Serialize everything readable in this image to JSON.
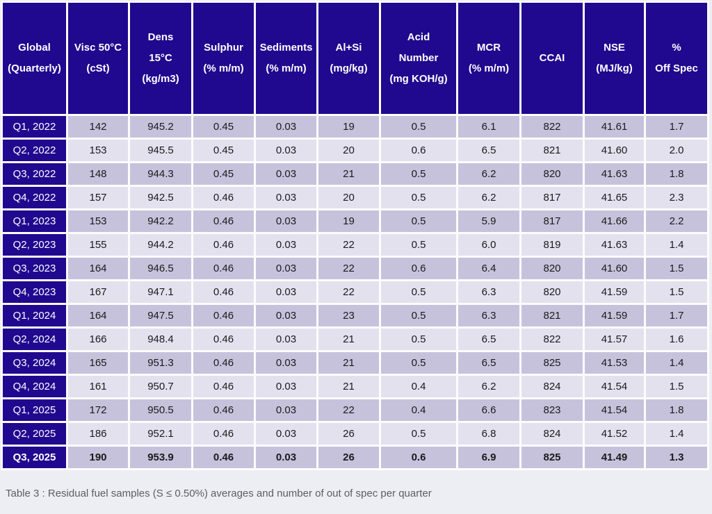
{
  "chart_data": {
    "type": "table",
    "columns": [
      "Global\n(Quarterly)",
      "Visc 50°C\n(cSt)",
      "Dens\n15°C\n(kg/m3)",
      "Sulphur\n(% m/m)",
      "Sediments\n(% m/m)",
      "Al+Si\n(mg/kg)",
      "Acid\nNumber\n(mg KOH/g)",
      "MCR\n(% m/m)",
      "CCAI",
      "NSE\n(MJ/kg)",
      "%\nOff Spec"
    ],
    "rows": [
      {
        "label": "Q1, 2022",
        "values": [
          "142",
          "945.2",
          "0.45",
          "0.03",
          "19",
          "0.5",
          "6.1",
          "822",
          "41.61",
          "1.7"
        ],
        "bold": false
      },
      {
        "label": "Q2, 2022",
        "values": [
          "153",
          "945.5",
          "0.45",
          "0.03",
          "20",
          "0.6",
          "6.5",
          "821",
          "41.60",
          "2.0"
        ],
        "bold": false
      },
      {
        "label": "Q3, 2022",
        "values": [
          "148",
          "944.3",
          "0.45",
          "0.03",
          "21",
          "0.5",
          "6.2",
          "820",
          "41.63",
          "1.8"
        ],
        "bold": false
      },
      {
        "label": "Q4, 2022",
        "values": [
          "157",
          "942.5",
          "0.46",
          "0.03",
          "20",
          "0.5",
          "6.2",
          "817",
          "41.65",
          "2.3"
        ],
        "bold": false
      },
      {
        "label": "Q1, 2023",
        "values": [
          "153",
          "942.2",
          "0.46",
          "0.03",
          "19",
          "0.5",
          "5.9",
          "817",
          "41.66",
          "2.2"
        ],
        "bold": false
      },
      {
        "label": "Q2, 2023",
        "values": [
          "155",
          "944.2",
          "0.46",
          "0.03",
          "22",
          "0.5",
          "6.0",
          "819",
          "41.63",
          "1.4"
        ],
        "bold": false
      },
      {
        "label": "Q3, 2023",
        "values": [
          "164",
          "946.5",
          "0.46",
          "0.03",
          "22",
          "0.6",
          "6.4",
          "820",
          "41.60",
          "1.5"
        ],
        "bold": false
      },
      {
        "label": "Q4, 2023",
        "values": [
          "167",
          "947.1",
          "0.46",
          "0.03",
          "22",
          "0.5",
          "6.3",
          "820",
          "41.59",
          "1.5"
        ],
        "bold": false
      },
      {
        "label": "Q1, 2024",
        "values": [
          "164",
          "947.5",
          "0.46",
          "0.03",
          "23",
          "0.5",
          "6.3",
          "821",
          "41.59",
          "1.7"
        ],
        "bold": false
      },
      {
        "label": "Q2, 2024",
        "values": [
          "166",
          "948.4",
          "0.46",
          "0.03",
          "21",
          "0.5",
          "6.5",
          "822",
          "41.57",
          "1.6"
        ],
        "bold": false
      },
      {
        "label": "Q3, 2024",
        "values": [
          "165",
          "951.3",
          "0.46",
          "0.03",
          "21",
          "0.5",
          "6.5",
          "825",
          "41.53",
          "1.4"
        ],
        "bold": false
      },
      {
        "label": "Q4, 2024",
        "values": [
          "161",
          "950.7",
          "0.46",
          "0.03",
          "21",
          "0.4",
          "6.2",
          "824",
          "41.54",
          "1.5"
        ],
        "bold": false
      },
      {
        "label": "Q1, 2025",
        "values": [
          "172",
          "950.5",
          "0.46",
          "0.03",
          "22",
          "0.4",
          "6.6",
          "823",
          "41.54",
          "1.8"
        ],
        "bold": false
      },
      {
        "label": "Q2, 2025",
        "values": [
          "186",
          "952.1",
          "0.46",
          "0.03",
          "26",
          "0.5",
          "6.8",
          "824",
          "41.52",
          "1.4"
        ],
        "bold": false
      },
      {
        "label": "Q3, 2025",
        "values": [
          "190",
          "953.9",
          "0.46",
          "0.03",
          "26",
          "0.6",
          "6.9",
          "825",
          "41.49",
          "1.3"
        ],
        "bold": true
      }
    ]
  },
  "caption": "Table 3 : Residual fuel samples (S ≤ 0.50%) averages and number of out of spec per quarter",
  "colors": {
    "page_bg": "#EDEEF3",
    "table_gap": "#FCFCFE",
    "header_bg": "#20098F",
    "header_text": "#FFFFFF",
    "row_odd": "#C7C2DC",
    "row_even": "#E4E1EF",
    "text": "#1A1A1A",
    "caption_text": "#5B5D62"
  }
}
